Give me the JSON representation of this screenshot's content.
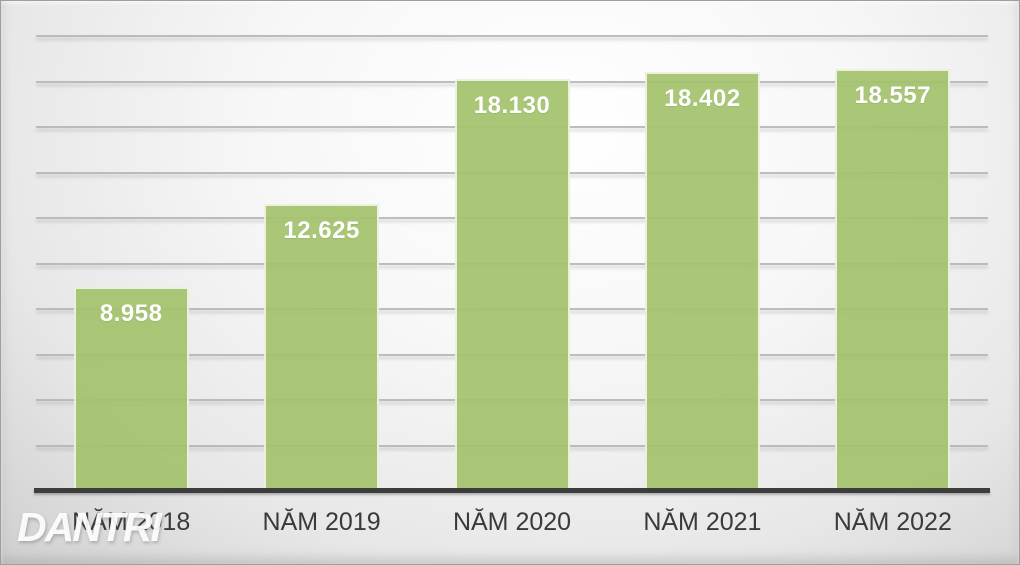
{
  "watermark": {
    "text": "DANTRI"
  },
  "chart_data": {
    "type": "bar",
    "title": "",
    "xlabel": "",
    "ylabel": "",
    "categories": [
      "NĂM 2018",
      "NĂM 2019",
      "NĂM 2020",
      "NĂM 2021",
      "NĂM 2022"
    ],
    "values": [
      8958,
      12625,
      18130,
      18402,
      18557
    ],
    "value_labels": [
      "8.958",
      "12.625",
      "18.130",
      "18.402",
      "18.557"
    ],
    "ylim": [
      0,
      20000
    ],
    "gridline_step": 2000,
    "grid": true,
    "legend": false,
    "y_tick_labels_visible": false,
    "bar_color": "#a5c36f",
    "bar_fill_rgba": "rgba(164,194,109,0.93)",
    "value_label_color": "#ffffff",
    "axis_color": "#3d3d3d",
    "gridline_color": "#b3b3b3",
    "category_label_color": "#3a3a3a"
  }
}
